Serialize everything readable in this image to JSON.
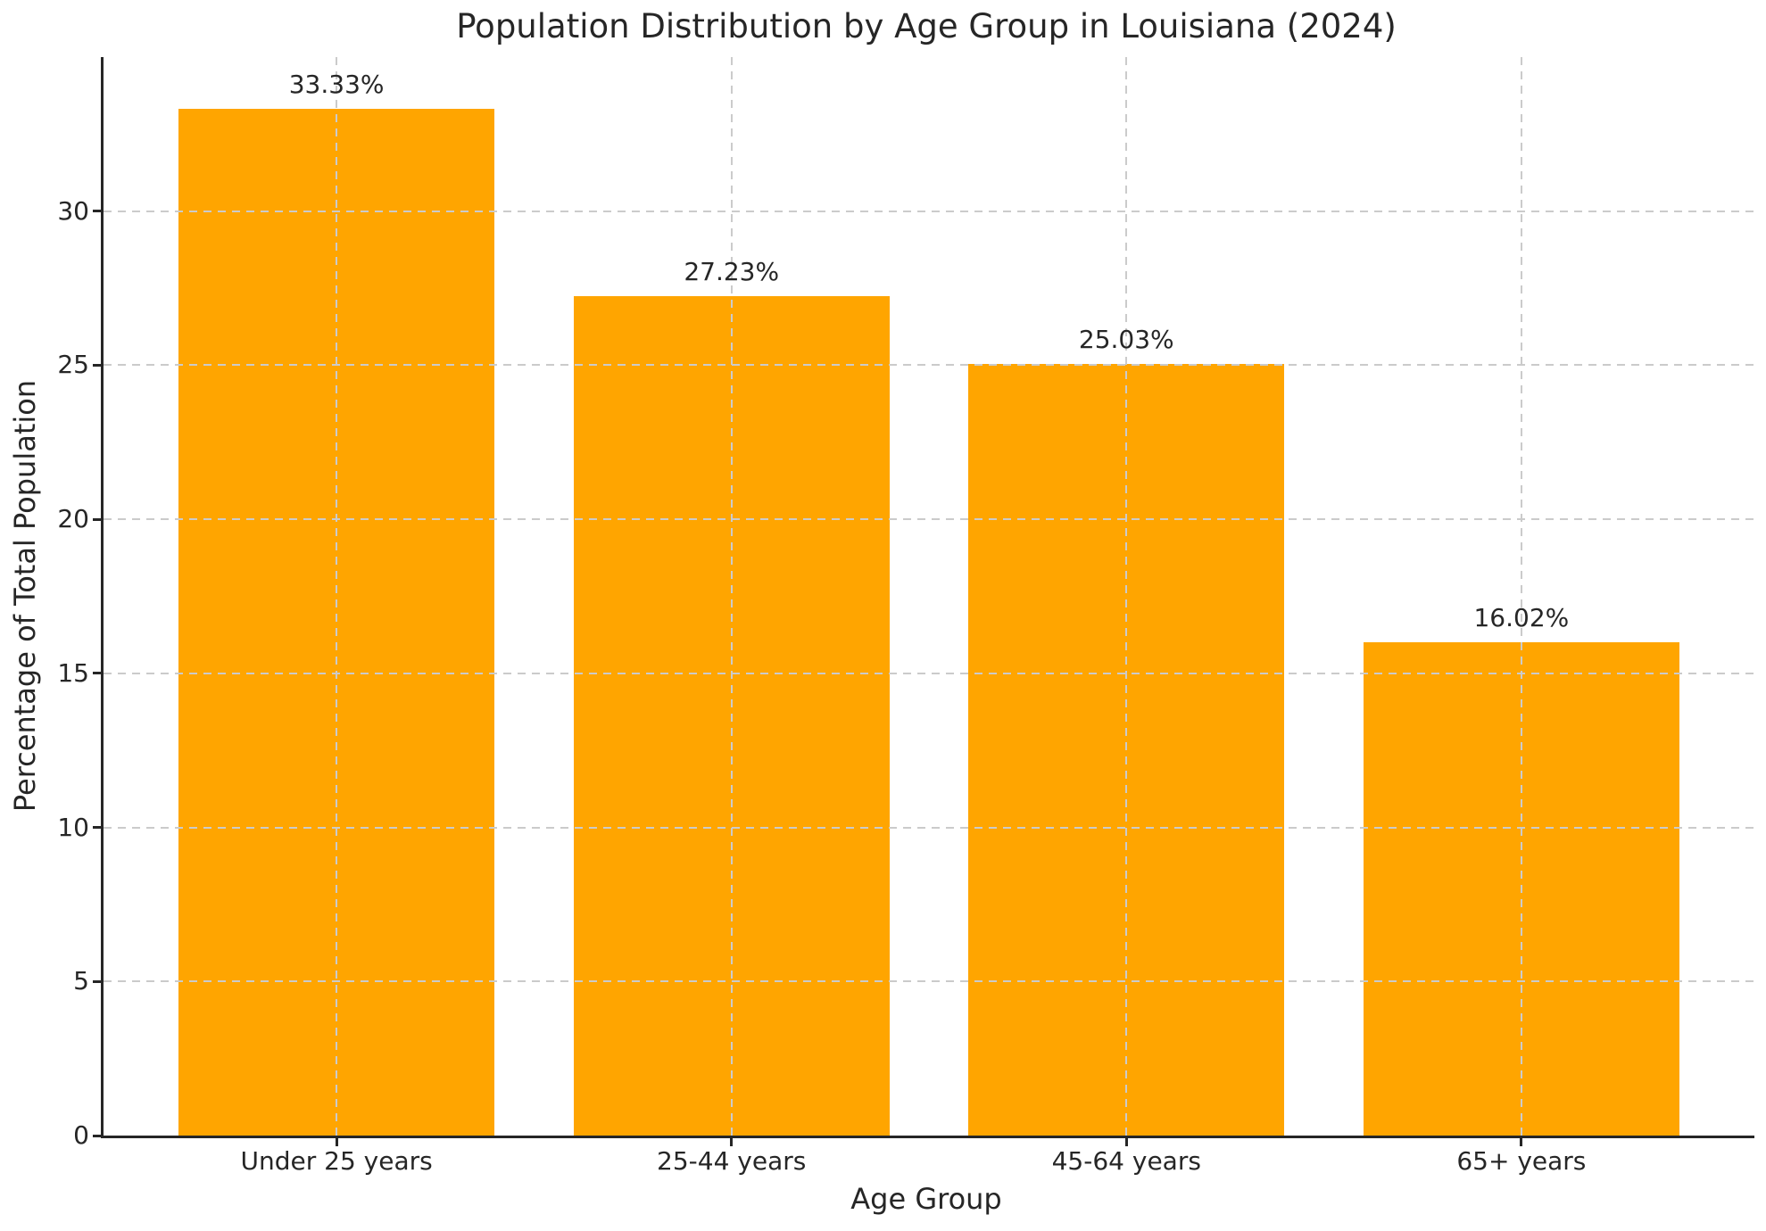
{
  "chart_data": {
    "type": "bar",
    "title": "Population Distribution by Age Group in Louisiana (2024)",
    "xlabel": "Age Group",
    "ylabel": "Percentage of Total Population",
    "categories": [
      "Under 25 years",
      "25-44 years",
      "45-64 years",
      "65+ years"
    ],
    "values": [
      33.33,
      27.23,
      25.03,
      16.02
    ],
    "bar_labels": [
      "33.33%",
      "27.23%",
      "25.03%",
      "16.02%"
    ],
    "yticks": [
      0,
      5,
      10,
      15,
      20,
      25,
      30
    ],
    "ylim": [
      0,
      35
    ],
    "bar_color": "#FFA500",
    "text_color": "#262626",
    "grid_color": "#cbcbcb",
    "grid": "dashed, horizontal and vertical, drawn above bars",
    "legend": "none"
  }
}
